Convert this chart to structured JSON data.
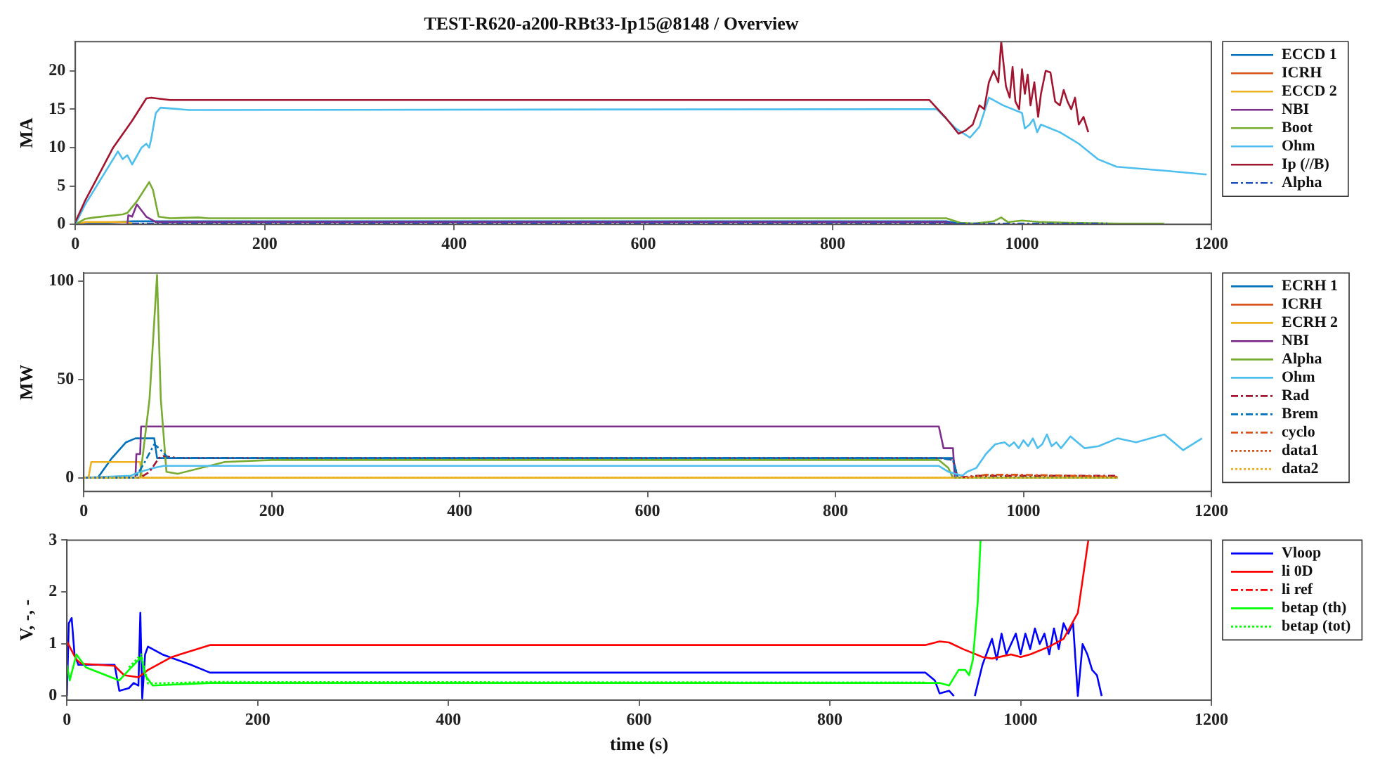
{
  "chart_data": [
    {
      "type": "line",
      "title": "TEST-R620-a200-RBt33-Ip15@8148 / Overview",
      "ylabel": "MA",
      "xlim": [
        0,
        1200
      ],
      "xticks": [
        0,
        200,
        400,
        600,
        800,
        1000,
        1200
      ],
      "ylim": [
        0,
        23.8
      ],
      "yticks": [
        0,
        5,
        10,
        15,
        20
      ],
      "grid": false,
      "legend": "top right",
      "marker": "none",
      "series": [
        {
          "name": "ECCD 1",
          "color": "#0072bd",
          "x": [
            0,
            60,
            80,
            920,
            940
          ],
          "values": [
            0,
            0.4,
            0.4,
            0.4,
            0
          ]
        },
        {
          "name": "ICRH",
          "color": "#d95319"
        },
        {
          "name": "ECCD 2",
          "color": "#edb120",
          "x": [
            0,
            10,
            55,
            60
          ],
          "values": [
            0,
            0.3,
            0.3,
            0.1
          ]
        },
        {
          "name": "NBI",
          "color": "#7e2f8e",
          "x": [
            0,
            55,
            56,
            60,
            65,
            75,
            85,
            920,
            930,
            1100
          ],
          "values": [
            0,
            0,
            1.2,
            1,
            2.6,
            1,
            0.3,
            0.3,
            0,
            0
          ]
        },
        {
          "name": "Boot",
          "color": "#77ac30",
          "x": [
            0,
            10,
            20,
            50,
            55,
            65,
            78,
            82,
            88,
            100,
            130,
            140,
            920,
            935,
            950,
            970,
            978,
            985,
            1000,
            1020,
            1050,
            1100,
            1150
          ],
          "values": [
            0,
            0.7,
            0.9,
            1.3,
            1.5,
            3,
            5.5,
            4.5,
            1,
            0.8,
            0.9,
            0.8,
            0.8,
            0.2,
            0.1,
            0.4,
            0.9,
            0.3,
            0.5,
            0.3,
            0.2,
            0.1,
            0.1
          ]
        },
        {
          "name": "Ohm",
          "color": "#4dbeee",
          "x": [
            0,
            10,
            45,
            50,
            55,
            60,
            70,
            75,
            78,
            80,
            85,
            90,
            120,
            910,
            930,
            945,
            950,
            955,
            965,
            980,
            1000,
            1003,
            1008,
            1012,
            1016,
            1020,
            1040,
            1060,
            1080,
            1100,
            1150,
            1195
          ],
          "values": [
            0,
            2.5,
            9.5,
            8.5,
            9,
            7.8,
            10,
            10.5,
            10,
            11,
            14.5,
            15.2,
            14.9,
            15,
            12.5,
            11.3,
            12,
            12.7,
            16.5,
            15.5,
            14.5,
            12.5,
            13,
            13.7,
            12,
            13,
            12,
            10.5,
            8.5,
            7.5,
            7,
            6.5
          ]
        },
        {
          "name": "Ip (//B)",
          "color": "#a2142f",
          "x": [
            0,
            10,
            40,
            60,
            75,
            80,
            100,
            902,
            920,
            933,
            940,
            948,
            955,
            960,
            965,
            970,
            975,
            978,
            983,
            987,
            990,
            993,
            997,
            1000,
            1003,
            1006,
            1009,
            1013,
            1017,
            1020,
            1025,
            1030,
            1035,
            1040,
            1044,
            1048,
            1052,
            1056,
            1060,
            1065,
            1070
          ],
          "values": [
            0.3,
            3,
            10,
            13.5,
            16.4,
            16.5,
            16.2,
            16.2,
            13.8,
            11.8,
            12.2,
            13,
            15.5,
            15,
            18.5,
            20,
            18.5,
            23.8,
            18,
            16.5,
            20.5,
            16,
            15,
            20.2,
            17,
            19.5,
            15.5,
            18.5,
            14,
            17,
            20,
            19.8,
            16,
            15.5,
            17.5,
            16,
            15,
            16.5,
            13,
            14,
            12
          ]
        },
        {
          "name": "Alpha",
          "color": "#1f4fbf",
          "line_style": "dashed",
          "x": [
            60,
            1090
          ],
          "values": [
            0.1,
            0.1
          ]
        }
      ]
    },
    {
      "type": "line",
      "ylabel": "MW",
      "xlim": [
        0,
        1200
      ],
      "xticks": [
        0,
        200,
        400,
        600,
        800,
        1000,
        1200
      ],
      "ylim": [
        -7,
        104
      ],
      "yticks": [
        0,
        50,
        100
      ],
      "grid": false,
      "legend": "top right",
      "marker": "none",
      "series": [
        {
          "name": "ECRH 1",
          "color": "#0072bd",
          "x": [
            0,
            15,
            30,
            45,
            55,
            75,
            78,
            80,
            910,
            925,
            930,
            1100
          ],
          "values": [
            0,
            0,
            10,
            18,
            20,
            20,
            10,
            10,
            10,
            10,
            0,
            0
          ]
        },
        {
          "name": "ICRH",
          "color": "#d95319"
        },
        {
          "name": "ECRH 2",
          "color": "#edb120",
          "x": [
            0,
            5,
            8,
            60,
            62,
            1100
          ],
          "values": [
            0,
            0,
            8,
            8,
            0,
            0
          ]
        },
        {
          "name": "NBI",
          "color": "#7e2f8e",
          "x": [
            0,
            55,
            56,
            60,
            61,
            910,
            915,
            925,
            927,
            1100
          ],
          "values": [
            0,
            0,
            12,
            12,
            26,
            26,
            15,
            15,
            0,
            0
          ]
        },
        {
          "name": "Alpha",
          "color": "#77ac30",
          "x": [
            0,
            60,
            70,
            78,
            82,
            88,
            100,
            150,
            200,
            910,
            920,
            925,
            1100
          ],
          "values": [
            0,
            0,
            40,
            103,
            40,
            3,
            2,
            8,
            9,
            9,
            5,
            0,
            0
          ]
        },
        {
          "name": "Ohm",
          "color": "#4dbeee",
          "x": [
            0,
            50,
            60,
            75,
            85,
            100,
            910,
            920,
            935,
            940,
            950,
            960,
            970,
            980,
            985,
            990,
            995,
            1000,
            1005,
            1010,
            1015,
            1020,
            1025,
            1030,
            1035,
            1040,
            1050,
            1060,
            1065,
            1080,
            1100,
            1120,
            1150,
            1170,
            1190
          ],
          "values": [
            0,
            1,
            3,
            5,
            6,
            6,
            6,
            3,
            1,
            3,
            5,
            12,
            17,
            18,
            16,
            18,
            15,
            19,
            16,
            20,
            15,
            17,
            22,
            16,
            18,
            15,
            21,
            17,
            15,
            16,
            20,
            18,
            22,
            14,
            20
          ]
        },
        {
          "name": "Rad",
          "color": "#a2142f",
          "line_style": "dashed",
          "x": [
            0,
            60,
            70,
            80,
            85,
            100,
            910,
            925,
            930,
            950,
            1100
          ],
          "values": [
            0,
            0,
            3,
            10,
            11,
            10,
            10,
            9,
            0,
            1,
            1
          ]
        },
        {
          "name": "Brem",
          "color": "#0072bd",
          "line_style": "dashed",
          "x": [
            0,
            55,
            65,
            75,
            80,
            90,
            910,
            925,
            930
          ],
          "values": [
            0,
            0,
            8,
            17,
            15,
            10,
            10,
            9,
            0
          ]
        },
        {
          "name": "cyclo",
          "color": "#d95319",
          "line_style": "dashed",
          "x": [
            940,
            960,
            1000,
            1100
          ],
          "values": [
            0,
            1.5,
            1.5,
            0.5
          ]
        },
        {
          "name": "data1",
          "color": "#d95319",
          "line_style": "dotted"
        },
        {
          "name": "data2",
          "color": "#edb120",
          "line_style": "dotted",
          "x": [
            0,
            1100
          ],
          "values": [
            0,
            0
          ]
        }
      ]
    },
    {
      "type": "line",
      "xlabel": "time (s)",
      "ylabel": "V, -, -",
      "xlim": [
        0,
        1200
      ],
      "xticks": [
        0,
        200,
        400,
        600,
        800,
        1000,
        1200
      ],
      "ylim": [
        -0.08,
        3
      ],
      "yticks": [
        0,
        1,
        2,
        3
      ],
      "grid": false,
      "legend": "top right",
      "marker": "none",
      "series": [
        {
          "name": "Vloop",
          "color": "#0000ff",
          "x": [
            0,
            2,
            5,
            8,
            12,
            50,
            55,
            65,
            70,
            75,
            77,
            79,
            82,
            85,
            100,
            130,
            150,
            900,
            910,
            915,
            925,
            930,
            940,
            952,
            960,
            970,
            975,
            980,
            985,
            990,
            995,
            1000,
            1005,
            1010,
            1015,
            1020,
            1025,
            1030,
            1035,
            1040,
            1045,
            1050,
            1055,
            1060,
            1065,
            1070,
            1075,
            1080,
            1085
          ],
          "values": [
            0,
            1.4,
            1.5,
            0.8,
            0.6,
            0.6,
            0.1,
            0.15,
            0.25,
            0.2,
            1.6,
            -0.05,
            0.8,
            0.95,
            0.8,
            0.6,
            0.45,
            0.45,
            0.3,
            0.05,
            0.1,
            0,
            null,
            0,
            0.6,
            1.1,
            0.7,
            1.2,
            0.8,
            1,
            1.2,
            0.8,
            1.2,
            0.9,
            1.3,
            1,
            1.2,
            0.8,
            1.3,
            0.9,
            1.4,
            1.2,
            1.4,
            0,
            1,
            0.8,
            0.5,
            0.4,
            0
          ]
        },
        {
          "name": "li 0D",
          "color": "#ff0000",
          "x": [
            0,
            10,
            15,
            50,
            60,
            75,
            85,
            110,
            150,
            900,
            915,
            925,
            940,
            960,
            970,
            990,
            1000,
            1010,
            1030,
            1045,
            1060,
            1071
          ],
          "values": [
            1.05,
            0.7,
            0.62,
            0.58,
            0.4,
            0.36,
            0.5,
            0.75,
            0.98,
            0.98,
            1.05,
            1.03,
            0.9,
            0.75,
            0.72,
            0.8,
            0.75,
            0.8,
            0.95,
            1.1,
            1.6,
            3
          ]
        },
        {
          "name": "li ref",
          "color": "#ff0000",
          "line_style": "dashed"
        },
        {
          "name": "betap (th)",
          "color": "#00ff00",
          "x": [
            0,
            3,
            10,
            20,
            55,
            65,
            78,
            82,
            90,
            150,
            900,
            915,
            925,
            935,
            942,
            946,
            950,
            955,
            958
          ],
          "values": [
            0.6,
            0.3,
            0.8,
            0.55,
            0.3,
            0.5,
            0.75,
            0.4,
            0.2,
            0.25,
            0.25,
            0.25,
            0.2,
            0.5,
            0.5,
            0.4,
            0.7,
            1.8,
            3
          ]
        },
        {
          "name": "betap (tot)",
          "color": "#00ff00",
          "line_style": "dotted",
          "x": [
            65,
            78,
            85,
            150,
            900
          ],
          "values": [
            0.55,
            0.8,
            0.24,
            0.27,
            0.26
          ]
        }
      ]
    }
  ]
}
